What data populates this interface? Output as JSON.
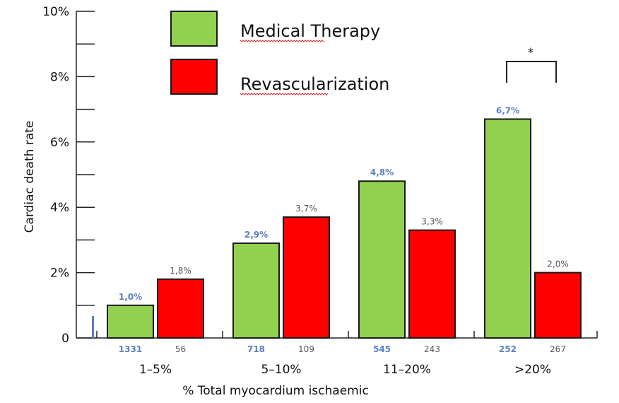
{
  "chart_data": {
    "type": "bar",
    "title": "",
    "xlabel": "% Total myocardium ischaemic",
    "ylabel": "Cardiac death rate",
    "ylim": [
      0,
      10
    ],
    "yticks": [
      "0",
      "2%",
      "4%",
      "6%",
      "8%",
      "10%"
    ],
    "categories": [
      "1–5%",
      "5–10%",
      "11–20%",
      ">20%"
    ],
    "series": [
      {
        "name": "Medical Therapy",
        "color": "#92d050",
        "values": [
          1.0,
          2.9,
          4.8,
          6.7
        ],
        "value_labels": [
          "1,0%",
          "2,9%",
          "4,8%",
          "6,7%"
        ],
        "n": [
          "1331",
          "718",
          "545",
          "252"
        ],
        "label_color": "#5b7fc7"
      },
      {
        "name": "Revascularization",
        "color": "#ff0000",
        "values": [
          1.8,
          3.7,
          3.3,
          2.0
        ],
        "value_labels": [
          "1,8%",
          "3,7%",
          "3,3%",
          "2,0%"
        ],
        "n": [
          "56",
          "109",
          "243",
          "267"
        ],
        "label_color": "#555555"
      }
    ],
    "annotation": "*",
    "legend_position": "top-left",
    "grid": false
  }
}
